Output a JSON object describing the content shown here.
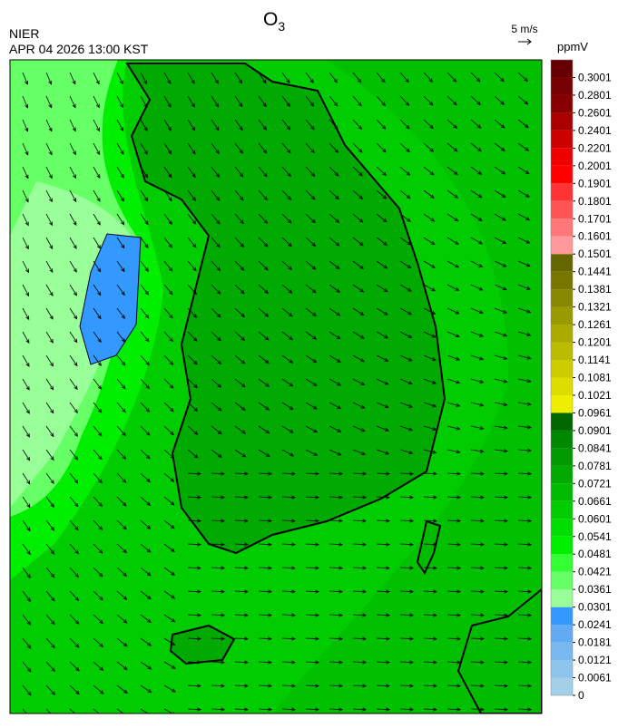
{
  "header": {
    "title": {
      "text": "O",
      "subscript": "3"
    },
    "agency": "NIER",
    "timestamp": "APR 04 2026 13:00 KST"
  },
  "wind_scale": {
    "label": "5 m/s"
  },
  "colorbar": {
    "unit": "ppmV",
    "ticks": [
      0,
      0.0061,
      0.0121,
      0.0181,
      0.0241,
      0.0301,
      0.0361,
      0.0421,
      0.0481,
      0.0541,
      0.0601,
      0.0661,
      0.0721,
      0.0781,
      0.0841,
      0.0901,
      0.0961,
      0.1021,
      0.1081,
      0.1141,
      0.1201,
      0.1261,
      0.1321,
      0.1381,
      0.1441,
      0.1501,
      0.1601,
      0.1701,
      0.1801,
      0.1901,
      0.2001,
      0.2201,
      0.2401,
      0.2601,
      0.2801,
      0.3001
    ],
    "colors": [
      "#a3cfe9",
      "#8fc4ec",
      "#79b7ef",
      "#62aaf2",
      "#3399ff",
      "#99ff99",
      "#66ff66",
      "#33ff33",
      "#00ee00",
      "#00dd00",
      "#00cc00",
      "#00bb00",
      "#00aa00",
      "#009900",
      "#008800",
      "#006600",
      "#eeee00",
      "#dddd00",
      "#cccc00",
      "#bbbb00",
      "#aaaa00",
      "#999900",
      "#888800",
      "#777700",
      "#666600",
      "#ff9999",
      "#ff7777",
      "#ff5555",
      "#ff3333",
      "#ff0000",
      "#ee0000",
      "#cc0000",
      "#aa0000",
      "#880000",
      "#770000",
      "#660000"
    ]
  }
}
